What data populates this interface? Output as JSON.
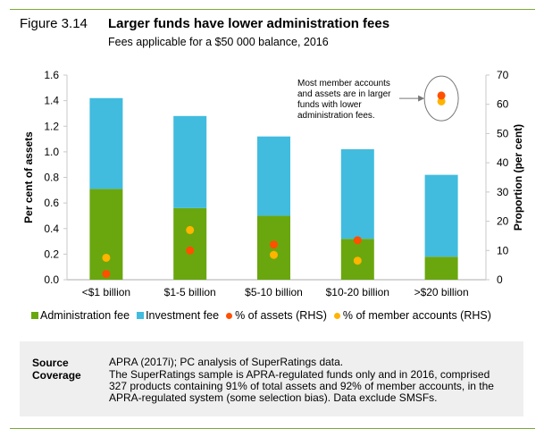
{
  "figure": {
    "label": "Figure 3.14",
    "title": "Larger funds have lower administration fees",
    "subtitle": "Fees applicable for a $50 000 balance, 2016"
  },
  "chart_data": {
    "type": "bar",
    "stacked": true,
    "title": "Larger funds have lower administration fees",
    "subtitle": "Fees applicable for a $50 000 balance, 2016",
    "categories": [
      "<$1 billion",
      "$1-5 billion",
      "$5-10 billion",
      "$10-20 billion",
      ">$20 billion"
    ],
    "series": [
      {
        "name": "Administration fee",
        "type": "bar",
        "axis": "left",
        "color": "#6aa70e",
        "values": [
          0.71,
          0.56,
          0.5,
          0.32,
          0.18
        ]
      },
      {
        "name": "Investment fee",
        "type": "bar",
        "axis": "left",
        "color": "#41bcdf",
        "values": [
          0.71,
          0.72,
          0.62,
          0.7,
          0.64
        ]
      },
      {
        "name": "% of assets (RHS)",
        "type": "scatter",
        "axis": "right",
        "color": "#ff5000",
        "values": [
          2,
          10,
          12,
          13.5,
          63
        ]
      },
      {
        "name": "% of member accounts (RHS)",
        "type": "scatter",
        "axis": "right",
        "color": "#ffb400",
        "values": [
          7.5,
          17,
          8.5,
          6.5,
          61
        ]
      }
    ],
    "ylabel": "Per cent of assets",
    "ylim": [
      0,
      1.6
    ],
    "yticks": [
      "0.0",
      "0.2",
      "0.4",
      "0.6",
      "0.8",
      "1.0",
      "1.2",
      "1.4",
      "1.6"
    ],
    "y2label": "Proportion (per cent)",
    "y2lim": [
      0,
      70
    ],
    "y2ticks": [
      "0",
      "10",
      "20",
      "30",
      "40",
      "50",
      "60",
      "70"
    ],
    "grid": false,
    "legend_position": "bottom",
    "annotation": {
      "lines": [
        "Most member accounts",
        "and assets are in larger",
        "funds with lower",
        "administration fees."
      ]
    }
  },
  "notes": {
    "source_label": "Source",
    "source_text": "APRA (2017i); PC analysis of SuperRatings data.",
    "coverage_label": "Coverage",
    "coverage_lines": [
      "The SuperRatings sample is APRA-regulated funds only and in 2016, comprised",
      "327 products containing 91% of total assets and 92% of member accounts, in the",
      "APRA-regulated system (some selection bias). Data exclude SMSFs."
    ]
  }
}
